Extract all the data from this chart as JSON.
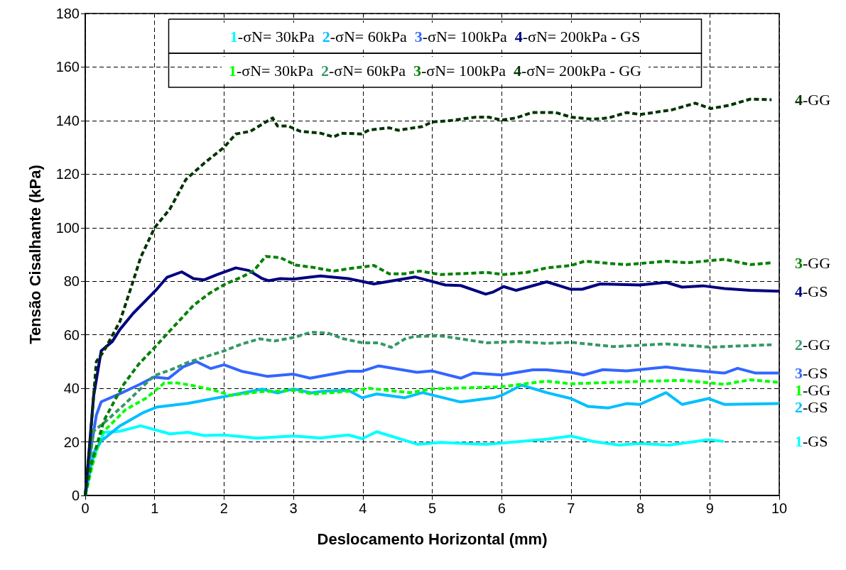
{
  "chart_data": {
    "type": "line",
    "xlabel": "Deslocamento Horizontal (mm)",
    "ylabel": "Tensão Cisalhante (kPa)",
    "xlim": [
      0,
      10
    ],
    "xticks": [
      0,
      1,
      2,
      3,
      4,
      5,
      6,
      7,
      8,
      9,
      10
    ],
    "ylim": [
      0,
      180
    ],
    "yticks": [
      0,
      20,
      40,
      60,
      80,
      100,
      120,
      140,
      160,
      180
    ],
    "grid": true,
    "annotations": [
      "1-σN= 30kPa  2-σN= 60kPa  3-σN= 100kPa  4-σN= 200kPa - GS",
      "1-σN= 30kPa  2-σN= 60kPa  3-σN= 100kPa  4-σN= 200kPa - GG"
    ],
    "series": [
      {
        "name": "1-GS",
        "color": "#00ffff",
        "line_style": "solid",
        "x": [
          0,
          0.1,
          0.27,
          0.5,
          0.8,
          1.22,
          1.48,
          1.71,
          2.0,
          2.47,
          3.0,
          3.39,
          3.79,
          3.99,
          4.2,
          4.79,
          5.12,
          5.78,
          6.65,
          7.0,
          7.31,
          7.69,
          7.99,
          8.41,
          8.98,
          9.2
        ],
        "values": [
          0,
          13,
          23.5,
          24,
          26,
          23,
          23.6,
          22.4,
          22.6,
          21.4,
          22.2,
          21.5,
          22.6,
          21.2,
          23.8,
          19.1,
          19.8,
          19.1,
          21,
          22.2,
          20.2,
          18.8,
          19.4,
          18.8,
          20.8,
          20.2
        ]
      },
      {
        "name": "2-GS",
        "color": "#00bfff",
        "line_style": "solid",
        "x": [
          0,
          0.12,
          0.23,
          0.5,
          0.84,
          1.03,
          1.48,
          2.0,
          2.55,
          2.77,
          3.0,
          3.26,
          3.42,
          3.79,
          3.99,
          4.2,
          4.6,
          4.86,
          5.41,
          5.89,
          6.0,
          6.29,
          6.65,
          7.0,
          7.24,
          7.54,
          7.8,
          7.99,
          8.37,
          8.6,
          8.98,
          9.21,
          10.0
        ],
        "values": [
          0,
          16,
          20.3,
          26,
          31,
          33,
          34.4,
          36.9,
          39.7,
          38.3,
          39.8,
          38.3,
          38.9,
          39.3,
          36.5,
          37.9,
          36.5,
          38.4,
          34.9,
          36.5,
          37.4,
          41.2,
          38.4,
          36.2,
          33.3,
          32.7,
          34.3,
          34,
          38.4,
          34,
          36.2,
          34,
          34.3
        ]
      },
      {
        "name": "3-GS",
        "color": "#3366ff",
        "line_style": "solid",
        "x": [
          0,
          0.06,
          0.16,
          0.23,
          0.5,
          0.77,
          0.99,
          1.2,
          1.41,
          1.6,
          1.81,
          2.0,
          2.25,
          2.62,
          3.0,
          3.24,
          3.79,
          3.99,
          4.23,
          4.78,
          5.0,
          5.41,
          5.59,
          6.0,
          6.45,
          6.65,
          7.0,
          7.18,
          7.46,
          7.8,
          8.37,
          8.67,
          9.21,
          9.4,
          9.66,
          10.0
        ],
        "values": [
          0,
          14,
          30,
          35,
          38,
          41.3,
          44.2,
          43.7,
          48,
          50,
          47.4,
          48.8,
          46.4,
          44.5,
          45.3,
          43.8,
          46.4,
          46.4,
          48.4,
          46,
          46.5,
          43.8,
          45.7,
          45,
          46.9,
          46.9,
          46,
          45,
          47,
          46.5,
          48,
          47,
          45.7,
          47.5,
          45.7,
          45.7
        ]
      },
      {
        "name": "4-GS",
        "color": "#000080",
        "line_style": "solid",
        "x": [
          0,
          0.05,
          0.12,
          0.23,
          0.39,
          0.5,
          0.69,
          0.88,
          1.03,
          1.18,
          1.39,
          1.56,
          1.71,
          1.9,
          2.17,
          2.36,
          2.55,
          2.64,
          2.81,
          3.0,
          3.23,
          3.39,
          3.79,
          4.16,
          4.75,
          5.19,
          5.41,
          5.77,
          5.88,
          6.03,
          6.21,
          6.65,
          7.0,
          7.16,
          7.42,
          7.99,
          8.37,
          8.6,
          8.9,
          9.21,
          9.58,
          10.0
        ],
        "values": [
          0,
          15,
          37,
          54,
          57.5,
          62,
          68,
          73,
          77,
          81.5,
          83.5,
          81,
          80.5,
          82.5,
          85,
          84,
          81,
          80.2,
          81,
          80.8,
          81.5,
          82,
          81,
          79,
          81.6,
          78.6,
          78.4,
          75.2,
          76,
          78,
          76.6,
          79.8,
          77,
          77,
          79,
          78.6,
          79.6,
          77.8,
          78.3,
          77.3,
          76.6,
          76.3
        ]
      },
      {
        "name": "1-GG",
        "color": "#00ff00",
        "line_style": "dashed",
        "x": [
          0,
          0.1,
          0.23,
          0.58,
          0.88,
          1.14,
          1.33,
          1.56,
          1.86,
          2.09,
          2.55,
          2.77,
          3.0,
          3.28,
          3.79,
          4.09,
          4.68,
          5.0,
          6.0,
          6.65,
          7.0,
          7.99,
          8.6,
          9.21,
          9.58,
          10.0
        ],
        "values": [
          0,
          11,
          23,
          32,
          36.4,
          42,
          42,
          41,
          39.3,
          37.4,
          38.8,
          39,
          39.3,
          37.9,
          38.9,
          40,
          38.4,
          39.8,
          40.6,
          42.7,
          41.7,
          42.6,
          43,
          41.5,
          43.2,
          42.2
        ]
      },
      {
        "name": "2-GG",
        "color": "#339966",
        "line_style": "dashed",
        "x": [
          0,
          0.12,
          0.31,
          0.58,
          0.99,
          1.26,
          1.48,
          2.0,
          2.25,
          2.51,
          2.73,
          3.0,
          3.26,
          3.5,
          3.72,
          4.0,
          4.23,
          4.41,
          4.6,
          4.75,
          5.12,
          5.41,
          5.78,
          6.25,
          6.65,
          7.0,
          7.61,
          8.37,
          9.01,
          9.89
        ],
        "values": [
          0,
          24,
          28,
          34.4,
          44.7,
          47.2,
          49.7,
          54,
          56.5,
          58.5,
          57.7,
          59,
          61,
          60.6,
          58.5,
          57,
          57,
          55.3,
          58.4,
          59.4,
          59.6,
          58.5,
          57,
          57.5,
          56.8,
          57.2,
          55.6,
          56.6,
          55.4,
          56.3
        ]
      },
      {
        "name": "3-GG",
        "color": "#008000",
        "line_style": "dashed",
        "x": [
          0,
          0.08,
          0.27,
          0.54,
          0.77,
          0.99,
          1.22,
          1.56,
          1.79,
          2.02,
          2.25,
          2.43,
          2.6,
          2.81,
          3.04,
          3.28,
          3.58,
          3.8,
          4.16,
          4.38,
          4.6,
          4.82,
          5.12,
          5.56,
          5.78,
          6.03,
          6.36,
          6.65,
          7.0,
          7.2,
          7.54,
          7.8,
          8.37,
          8.67,
          9.21,
          9.58,
          9.89
        ],
        "values": [
          0,
          11,
          28,
          41,
          49,
          55,
          61.5,
          71,
          75.5,
          79,
          81.5,
          84,
          89.3,
          88.8,
          86,
          85.2,
          83.8,
          84.7,
          85.9,
          82.8,
          82.8,
          83.8,
          82.5,
          83,
          83.3,
          82.5,
          83.3,
          85,
          85.9,
          87.5,
          86.7,
          86.2,
          87.5,
          86.9,
          88.2,
          86.2,
          86.9
        ]
      },
      {
        "name": "4-GG",
        "color": "#003300",
        "line_style": "dashed",
        "x": [
          0,
          0.06,
          0.16,
          0.27,
          0.5,
          0.69,
          0.8,
          1.0,
          1.22,
          1.45,
          1.71,
          2.0,
          2.17,
          2.38,
          2.7,
          2.77,
          2.92,
          3.1,
          3.39,
          3.58,
          3.69,
          3.98,
          4.09,
          4.38,
          4.51,
          4.86,
          5.0,
          5.26,
          5.63,
          5.81,
          6.0,
          6.21,
          6.44,
          6.78,
          7.0,
          7.31,
          7.54,
          7.8,
          8.0,
          8.45,
          8.79,
          9.01,
          9.28,
          9.58,
          9.89
        ],
        "values": [
          0,
          17,
          50,
          54,
          65,
          80,
          89,
          100,
          107,
          118,
          124,
          130,
          135,
          136,
          141,
          138,
          138,
          136,
          135.3,
          133.9,
          135.3,
          135,
          136.5,
          137.3,
          136.4,
          137.8,
          139.5,
          140,
          141.3,
          141.3,
          140.2,
          141,
          143,
          143,
          141.3,
          140.5,
          141,
          143,
          142.3,
          144,
          146.5,
          144.5,
          145.7,
          148,
          147.8
        ]
      }
    ]
  }
}
